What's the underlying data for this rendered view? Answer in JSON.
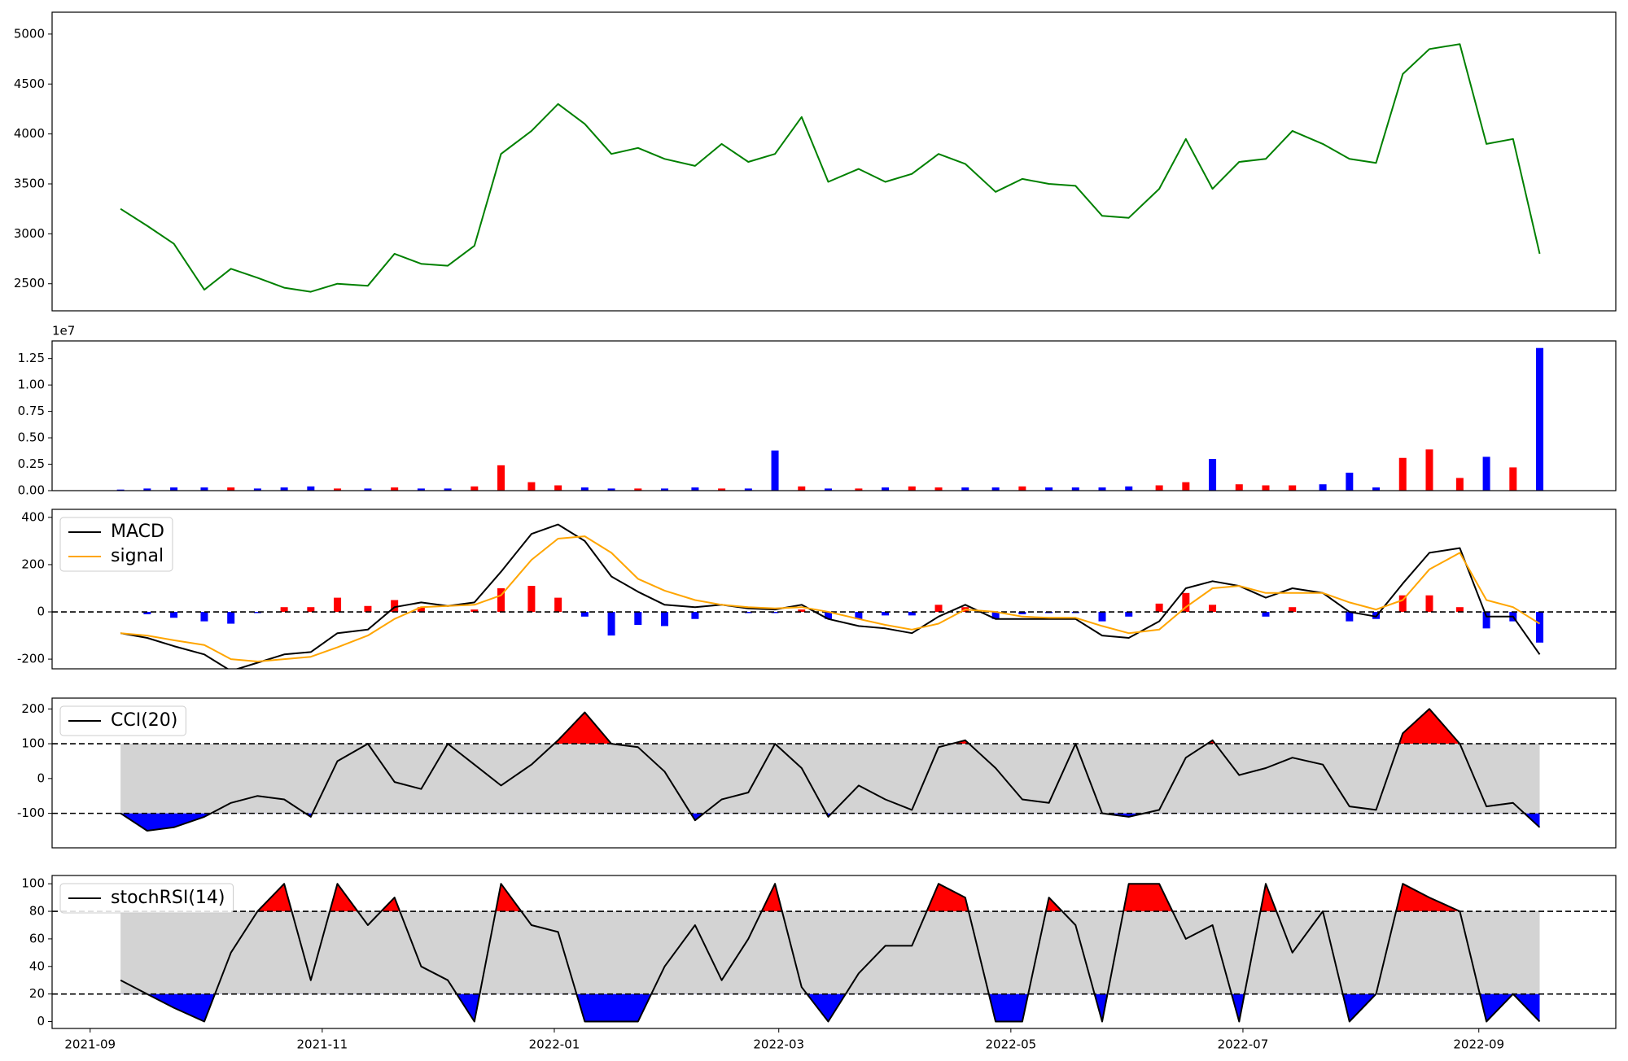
{
  "chart_data": {
    "type": "panels",
    "x": [
      8,
      15,
      22,
      30,
      37,
      44,
      51,
      58,
      65,
      73,
      80,
      87,
      94,
      101,
      108,
      116,
      123,
      130,
      137,
      144,
      151,
      159,
      166,
      173,
      180,
      187,
      194,
      202,
      209,
      216,
      223,
      230,
      238,
      245,
      252,
      259,
      266,
      273,
      281,
      288,
      295,
      302,
      309,
      316,
      324,
      331,
      338,
      345,
      352,
      360,
      367,
      374,
      381
    ],
    "xlim": [
      -10,
      401
    ],
    "xticks": [
      {
        "value": 0,
        "label": "2021-09"
      },
      {
        "value": 61,
        "label": "2021-11"
      },
      {
        "value": 122,
        "label": "2022-01"
      },
      {
        "value": 181,
        "label": "2022-03"
      },
      {
        "value": 242,
        "label": "2022-05"
      },
      {
        "value": 303,
        "label": "2022-07"
      },
      {
        "value": 365,
        "label": "2022-09"
      }
    ],
    "panels": [
      {
        "type": "line",
        "ylim": [
          2229,
          5219
        ],
        "yticks": [
          2500,
          3000,
          3500,
          4000,
          4500,
          5000
        ],
        "series": [
          {
            "color": "green",
            "values": [
              3250,
              3080,
              2900,
              2440,
              2650,
              2560,
              2460,
              2420,
              2500,
              2480,
              2800,
              2700,
              2680,
              2880,
              3800,
              4030,
              4300,
              4100,
              3800,
              3860,
              3750,
              3680,
              3900,
              3720,
              3800,
              4170,
              3520,
              3650,
              3520,
              3600,
              3800,
              3700,
              3420,
              3550,
              3500,
              3480,
              3180,
              3160,
              3450,
              3950,
              3450,
              3720,
              3750,
              4030,
              3900,
              3750,
              3710,
              4600,
              4850,
              4900,
              3900,
              3950,
              2800
            ]
          }
        ]
      },
      {
        "type": "bar",
        "ylim": [
          0,
          14170000
        ],
        "yticks": [
          {
            "value": 0,
            "label": "0.00"
          },
          {
            "value": 2500000,
            "label": "0.25"
          },
          {
            "value": 5000000,
            "label": "0.50"
          },
          {
            "value": 7500000,
            "label": "0.75"
          },
          {
            "value": 10000000,
            "label": "1.00"
          },
          {
            "value": 12500000,
            "label": "1.25"
          }
        ],
        "offset_label": "1e7",
        "values": [
          100000,
          200000,
          300000,
          300000,
          300000,
          200000,
          300000,
          400000,
          200000,
          200000,
          300000,
          200000,
          200000,
          400000,
          2400000,
          800000,
          500000,
          300000,
          200000,
          200000,
          200000,
          300000,
          200000,
          200000,
          3800000,
          400000,
          200000,
          200000,
          300000,
          400000,
          300000,
          300000,
          300000,
          400000,
          300000,
          300000,
          300000,
          400000,
          500000,
          800000,
          3000000,
          600000,
          500000,
          500000,
          600000,
          1700000,
          300000,
          3100000,
          3900000,
          1200000,
          3200000,
          2200000,
          13500000
        ],
        "colors": [
          "blue",
          "blue",
          "blue",
          "blue",
          "red",
          "blue",
          "blue",
          "blue",
          "red",
          "blue",
          "red",
          "blue",
          "blue",
          "red",
          "red",
          "red",
          "red",
          "blue",
          "blue",
          "red",
          "blue",
          "blue",
          "red",
          "blue",
          "blue",
          "red",
          "blue",
          "red",
          "blue",
          "red",
          "red",
          "blue",
          "blue",
          "red",
          "blue",
          "blue",
          "blue",
          "blue",
          "red",
          "red",
          "blue",
          "red",
          "red",
          "red",
          "blue",
          "blue",
          "blue",
          "red",
          "red",
          "red",
          "blue",
          "red",
          "blue"
        ]
      },
      {
        "type": "macd",
        "ylim": [
          -241,
          434
        ],
        "yticks": [
          -200,
          0,
          200,
          400
        ],
        "hlines": [
          0
        ],
        "legend": "upper left",
        "series": [
          {
            "name": "MACD",
            "color": "black",
            "values": [
              -90,
              -110,
              -145,
              -180,
              -250,
              -215,
              -180,
              -170,
              -90,
              -75,
              20,
              40,
              25,
              40,
              170,
              330,
              370,
              300,
              150,
              85,
              30,
              20,
              30,
              15,
              10,
              30,
              -30,
              -60,
              -70,
              -90,
              -20,
              30,
              -30,
              -30,
              -30,
              -30,
              -100,
              -110,
              -40,
              100,
              130,
              110,
              60,
              100,
              80,
              0,
              -20,
              120,
              250,
              270,
              -20,
              -20,
              -180
            ]
          },
          {
            "name": "signal",
            "color": "orange",
            "values": [
              -90,
              -100,
              -120,
              -140,
              -200,
              -210,
              -200,
              -190,
              -150,
              -100,
              -30,
              20,
              25,
              30,
              70,
              220,
              310,
              320,
              250,
              140,
              90,
              50,
              30,
              20,
              15,
              20,
              0,
              -30,
              -55,
              -75,
              -50,
              10,
              0,
              -20,
              -25,
              -25,
              -60,
              -90,
              -75,
              20,
              100,
              110,
              80,
              80,
              80,
              40,
              10,
              50,
              180,
              250,
              50,
              20,
              -50
            ]
          }
        ],
        "histogram": {
          "up_color": "red",
          "down_color": "blue",
          "values": [
            0,
            -10,
            -25,
            -40,
            -50,
            -5,
            20,
            20,
            60,
            25,
            50,
            20,
            0,
            10,
            100,
            110,
            60,
            -20,
            -100,
            -55,
            -60,
            -30,
            0,
            -5,
            -5,
            10,
            -30,
            -30,
            -15,
            -15,
            30,
            20,
            -30,
            -10,
            -5,
            -5,
            -40,
            -20,
            35,
            80,
            30,
            0,
            -20,
            20,
            0,
            -40,
            -30,
            70,
            70,
            20,
            -70,
            -40,
            -130
          ]
        }
      },
      {
        "type": "band",
        "ylim": [
          -199,
          231
        ],
        "yticks": [
          -100,
          0,
          100,
          200
        ],
        "bands": [
          -100,
          100
        ],
        "band_color": "lightgray",
        "above_color": "red",
        "below_color": "blue",
        "legend": "upper left",
        "series": [
          {
            "name": "CCI(20)",
            "color": "black",
            "values": [
              -100,
              -150,
              -140,
              -110,
              -70,
              -50,
              -60,
              -110,
              50,
              100,
              -10,
              -30,
              100,
              40,
              -20,
              40,
              110,
              190,
              100,
              90,
              20,
              -120,
              -60,
              -40,
              100,
              30,
              -110,
              -20,
              -60,
              -90,
              90,
              110,
              30,
              -60,
              -70,
              100,
              -100,
              -110,
              -90,
              60,
              110,
              10,
              30,
              60,
              40,
              -80,
              -90,
              130,
              200,
              100,
              -80,
              -70,
              -140
            ]
          }
        ]
      },
      {
        "type": "band",
        "ylim": [
          -5,
          106
        ],
        "yticks": [
          0,
          20,
          40,
          60,
          80,
          100
        ],
        "bands": [
          20,
          80
        ],
        "band_color": "lightgray",
        "above_color": "red",
        "below_color": "blue",
        "legend": "upper left",
        "series": [
          {
            "name": "stochRSI(14)",
            "color": "black",
            "values": [
              30,
              20,
              10,
              0,
              50,
              80,
              100,
              30,
              100,
              70,
              90,
              40,
              30,
              0,
              100,
              70,
              65,
              0,
              0,
              0,
              40,
              70,
              30,
              60,
              100,
              25,
              0,
              35,
              55,
              55,
              100,
              90,
              0,
              0,
              90,
              70,
              0,
              100,
              100,
              60,
              70,
              0,
              100,
              50,
              80,
              0,
              20,
              100,
              90,
              80,
              0,
              20,
              0
            ]
          }
        ]
      }
    ]
  }
}
